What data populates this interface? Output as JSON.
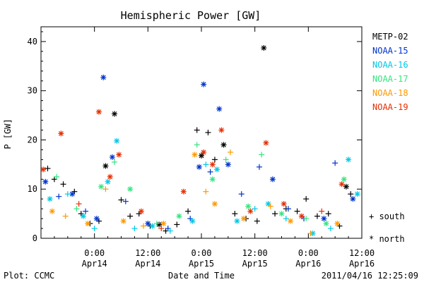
{
  "chart_data": {
    "type": "scatter",
    "title": "Hemispheric Power [GW]",
    "ylabel": "P [GW]",
    "xlabel": "Date and Time",
    "ylim": [
      0,
      43
    ],
    "y_ticks": [
      0,
      10,
      20,
      30,
      40
    ],
    "x_range": [
      "2011-04-13 12:00",
      "2011-04-16 12:00"
    ],
    "x_ticks": [
      {
        "time": "2011-04-14 00:00",
        "line1": "0:00",
        "line2": "Apr14"
      },
      {
        "time": "2011-04-14 12:00",
        "line1": "12:00",
        "line2": "Apr14"
      },
      {
        "time": "2011-04-15 00:00",
        "line1": "0:00",
        "line2": "Apr15"
      },
      {
        "time": "2011-04-15 12:00",
        "line1": "12:00",
        "line2": "Apr15"
      },
      {
        "time": "2011-04-16 00:00",
        "line1": "0:00",
        "line2": "Apr16"
      },
      {
        "time": "2011-04-16 12:00",
        "line1": "12:00",
        "line2": "Apr16"
      }
    ],
    "grid": false,
    "legend_position": "right",
    "marker_legend": {
      "south": "+ south",
      "north": "* north"
    },
    "series": [
      {
        "name": "METP-02",
        "color": "#000000",
        "points": [
          [
            "2011-04-13 13:30",
            14.2,
            "+"
          ],
          [
            "2011-04-13 15:00",
            12.0,
            "+"
          ],
          [
            "2011-04-13 17:00",
            11.0,
            "+"
          ],
          [
            "2011-04-13 19:30",
            9.5,
            "+"
          ],
          [
            "2011-04-13 21:00",
            5.0,
            "+"
          ],
          [
            "2011-04-13 23:00",
            3.0,
            "+"
          ],
          [
            "2011-04-14 01:00",
            3.5,
            "+"
          ],
          [
            "2011-04-14 02:30",
            14.7,
            "*"
          ],
          [
            "2011-04-14 04:30",
            25.3,
            "*"
          ],
          [
            "2011-04-14 06:00",
            7.8,
            "+"
          ],
          [
            "2011-04-14 08:00",
            4.5,
            "+"
          ],
          [
            "2011-04-14 10:00",
            5.0,
            "+"
          ],
          [
            "2011-04-14 12:30",
            2.5,
            "+"
          ],
          [
            "2011-04-14 14:30",
            2.8,
            "*"
          ],
          [
            "2011-04-14 16:00",
            1.5,
            "+"
          ],
          [
            "2011-04-14 18:30",
            2.8,
            "+"
          ],
          [
            "2011-04-14 21:00",
            5.5,
            "+"
          ],
          [
            "2011-04-14 23:00",
            22.0,
            "+"
          ],
          [
            "2011-04-15 00:00",
            16.8,
            "*"
          ],
          [
            "2011-04-15 01:30",
            21.5,
            "+"
          ],
          [
            "2011-04-15 03:00",
            16.0,
            "+"
          ],
          [
            "2011-04-15 05:00",
            19.0,
            "*"
          ],
          [
            "2011-04-15 07:30",
            5.0,
            "+"
          ],
          [
            "2011-04-15 10:00",
            4.0,
            "+"
          ],
          [
            "2011-04-15 12:30",
            3.5,
            "+"
          ],
          [
            "2011-04-15 14:00",
            38.7,
            "*"
          ],
          [
            "2011-04-15 16:30",
            5.0,
            "+"
          ],
          [
            "2011-04-15 19:00",
            6.0,
            "+"
          ],
          [
            "2011-04-15 21:30",
            5.5,
            "+"
          ],
          [
            "2011-04-15 23:30",
            8.0,
            "+"
          ],
          [
            "2011-04-16 02:00",
            4.5,
            "+"
          ],
          [
            "2011-04-16 04:30",
            5.0,
            "+"
          ],
          [
            "2011-04-16 07:00",
            2.5,
            "+"
          ],
          [
            "2011-04-16 08:30",
            10.5,
            "*"
          ],
          [
            "2011-04-16 09:30",
            9.0,
            "+"
          ]
        ]
      },
      {
        "name": "NOAA-15",
        "color": "#0033cc",
        "points": [
          [
            "2011-04-13 13:00",
            11.5,
            "*"
          ],
          [
            "2011-04-13 16:00",
            8.5,
            "+"
          ],
          [
            "2011-04-13 19:00",
            9.0,
            "*"
          ],
          [
            "2011-04-13 22:00",
            5.5,
            "+"
          ],
          [
            "2011-04-14 00:30",
            4.0,
            "*"
          ],
          [
            "2011-04-14 02:00",
            32.7,
            "*"
          ],
          [
            "2011-04-14 04:00",
            16.5,
            "*"
          ],
          [
            "2011-04-14 07:00",
            7.5,
            "+"
          ],
          [
            "2011-04-14 12:00",
            3.0,
            "*"
          ],
          [
            "2011-04-14 16:30",
            2.0,
            "+"
          ],
          [
            "2011-04-14 21:30",
            4.0,
            "+"
          ],
          [
            "2011-04-14 23:30",
            14.5,
            "*"
          ],
          [
            "2011-04-15 00:30",
            31.3,
            "*"
          ],
          [
            "2011-04-15 02:00",
            13.5,
            "+"
          ],
          [
            "2011-04-15 04:00",
            26.3,
            "*"
          ],
          [
            "2011-04-15 06:00",
            15.0,
            "*"
          ],
          [
            "2011-04-15 09:00",
            9.0,
            "+"
          ],
          [
            "2011-04-15 13:00",
            14.5,
            "+"
          ],
          [
            "2011-04-15 16:00",
            12.0,
            "*"
          ],
          [
            "2011-04-15 19:30",
            6.0,
            "+"
          ],
          [
            "2011-04-15 23:00",
            4.0,
            "+"
          ],
          [
            "2011-04-16 03:30",
            4.0,
            "*"
          ],
          [
            "2011-04-16 06:00",
            15.3,
            "+"
          ],
          [
            "2011-04-16 10:00",
            8.0,
            "*"
          ]
        ]
      },
      {
        "name": "NOAA-16",
        "color": "#00c8e6",
        "points": [
          [
            "2011-04-13 14:00",
            8.0,
            "*"
          ],
          [
            "2011-04-13 18:00",
            9.0,
            "+"
          ],
          [
            "2011-04-13 21:30",
            4.5,
            "*"
          ],
          [
            "2011-04-14 00:00",
            2.0,
            "+"
          ],
          [
            "2011-04-14 03:00",
            11.5,
            "*"
          ],
          [
            "2011-04-14 05:00",
            19.8,
            "*"
          ],
          [
            "2011-04-14 09:00",
            2.0,
            "+"
          ],
          [
            "2011-04-14 13:00",
            2.5,
            "*"
          ],
          [
            "2011-04-14 17:00",
            1.5,
            "+"
          ],
          [
            "2011-04-14 22:00",
            3.5,
            "*"
          ],
          [
            "2011-04-15 01:00",
            15.0,
            "+"
          ],
          [
            "2011-04-15 03:30",
            14.0,
            "*"
          ],
          [
            "2011-04-15 08:00",
            3.5,
            "*"
          ],
          [
            "2011-04-15 12:00",
            6.0,
            "+"
          ],
          [
            "2011-04-15 15:00",
            7.0,
            "*"
          ],
          [
            "2011-04-15 19:00",
            4.0,
            "+"
          ],
          [
            "2011-04-16 01:00",
            1.0,
            "*"
          ],
          [
            "2011-04-16 05:00",
            2.0,
            "+"
          ],
          [
            "2011-04-16 09:00",
            16.0,
            "*"
          ],
          [
            "2011-04-16 11:00",
            9.0,
            "*"
          ]
        ]
      },
      {
        "name": "NOAA-17",
        "color": "#33e680",
        "points": [
          [
            "2011-04-13 15:30",
            12.5,
            "+"
          ],
          [
            "2011-04-13 20:00",
            6.0,
            "+"
          ],
          [
            "2011-04-14 01:30",
            10.5,
            "*"
          ],
          [
            "2011-04-14 04:30",
            15.5,
            "+"
          ],
          [
            "2011-04-14 08:00",
            10.0,
            "*"
          ],
          [
            "2011-04-14 14:00",
            3.0,
            "+"
          ],
          [
            "2011-04-14 19:00",
            4.5,
            "*"
          ],
          [
            "2011-04-14 23:00",
            19.0,
            "+"
          ],
          [
            "2011-04-15 02:30",
            12.0,
            "*"
          ],
          [
            "2011-04-15 05:30",
            16.0,
            "+"
          ],
          [
            "2011-04-15 10:30",
            6.5,
            "*"
          ],
          [
            "2011-04-15 13:30",
            17.0,
            "+"
          ],
          [
            "2011-04-15 18:00",
            5.0,
            "*"
          ],
          [
            "2011-04-15 23:30",
            4.0,
            "+"
          ],
          [
            "2011-04-16 04:00",
            3.0,
            "*"
          ],
          [
            "2011-04-16 08:00",
            12.0,
            "*"
          ]
        ]
      },
      {
        "name": "NOAA-18",
        "color": "#ff9900",
        "points": [
          [
            "2011-04-13 14:30",
            5.5,
            "*"
          ],
          [
            "2011-04-13 17:30",
            4.5,
            "+"
          ],
          [
            "2011-04-13 22:30",
            3.0,
            "*"
          ],
          [
            "2011-04-14 02:30",
            10.0,
            "+"
          ],
          [
            "2011-04-14 06:30",
            3.5,
            "*"
          ],
          [
            "2011-04-14 11:00",
            2.5,
            "+"
          ],
          [
            "2011-04-14 15:30",
            3.0,
            "*"
          ],
          [
            "2011-04-14 22:30",
            17.0,
            "*"
          ],
          [
            "2011-04-15 01:00",
            9.5,
            "+"
          ],
          [
            "2011-04-15 03:00",
            7.0,
            "*"
          ],
          [
            "2011-04-15 06:30",
            17.5,
            "+"
          ],
          [
            "2011-04-15 09:30",
            4.0,
            "*"
          ],
          [
            "2011-04-15 15:30",
            6.5,
            "+"
          ],
          [
            "2011-04-15 20:00",
            3.5,
            "*"
          ],
          [
            "2011-04-16 00:30",
            1.0,
            "+"
          ],
          [
            "2011-04-16 06:30",
            3.0,
            "*"
          ]
        ]
      },
      {
        "name": "NOAA-19",
        "color": "#e62e00",
        "points": [
          [
            "2011-04-13 12:30",
            14.0,
            "*"
          ],
          [
            "2011-04-13 16:30",
            21.3,
            "*"
          ],
          [
            "2011-04-13 20:30",
            7.0,
            "+"
          ],
          [
            "2011-04-14 01:00",
            25.7,
            "*"
          ],
          [
            "2011-04-14 03:30",
            12.5,
            "*"
          ],
          [
            "2011-04-14 05:30",
            17.0,
            "*"
          ],
          [
            "2011-04-14 10:30",
            5.5,
            "*"
          ],
          [
            "2011-04-14 15:00",
            2.0,
            "+"
          ],
          [
            "2011-04-14 20:00",
            9.5,
            "*"
          ],
          [
            "2011-04-15 00:30",
            17.5,
            "*"
          ],
          [
            "2011-04-15 02:30",
            15.0,
            "*"
          ],
          [
            "2011-04-15 04:30",
            22.0,
            "*"
          ],
          [
            "2011-04-15 11:00",
            5.5,
            "*"
          ],
          [
            "2011-04-15 14:30",
            19.4,
            "*"
          ],
          [
            "2011-04-15 18:30",
            7.0,
            "*"
          ],
          [
            "2011-04-15 22:30",
            4.5,
            "*"
          ],
          [
            "2011-04-16 03:00",
            5.5,
            "+"
          ],
          [
            "2011-04-16 07:30",
            11.0,
            "*"
          ]
        ]
      }
    ]
  },
  "footer": {
    "plot_label": "Plot: CCMC",
    "timestamp": "2011/04/16 12:25:09"
  }
}
